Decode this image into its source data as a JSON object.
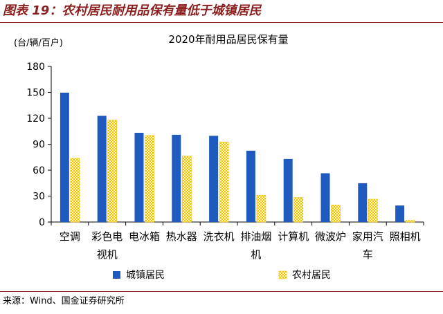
{
  "figure_title": "图表 19：农村居民耐用品保有量低于城镇居民",
  "source_label": "来源：",
  "source_text": "Wind、国金证券研究所",
  "colors": {
    "urban": "#1f5bbf",
    "rural": "#f2c200",
    "title": "#8b1e1e",
    "axis": "#000000"
  },
  "chart_data": {
    "type": "bar",
    "title": "2020年耐用品居民保有量",
    "unit_label": "(台/辆/百户)",
    "xlabel": "",
    "ylabel": "",
    "ylim": [
      0,
      180
    ],
    "yticks": [
      0,
      30,
      60,
      90,
      120,
      150,
      180
    ],
    "grid": false,
    "legend_position": "bottom",
    "categories": [
      "空调",
      "彩色电视机",
      "电冰箱",
      "热水器",
      "洗衣机",
      "排油烟机",
      "计算机",
      "微波炉",
      "家用汽车",
      "照相机"
    ],
    "category_lines": [
      [
        "空调"
      ],
      [
        "彩色电",
        "视机"
      ],
      [
        "电冰箱"
      ],
      [
        "热水器"
      ],
      [
        "洗衣机"
      ],
      [
        "排油烟",
        "机"
      ],
      [
        "计算机"
      ],
      [
        "微波炉"
      ],
      [
        "家用汽",
        "车"
      ],
      [
        "照相机"
      ]
    ],
    "series": [
      {
        "name": "城镇居民",
        "values": [
          149.6,
          122.8,
          103.2,
          100.9,
          99.7,
          82.5,
          72.9,
          56.4,
          44.9,
          19.1
        ]
      },
      {
        "name": "农村居民",
        "values": [
          73.8,
          117.8,
          100.1,
          76.2,
          92.6,
          30.9,
          28.3,
          19.7,
          26.4,
          1.8
        ]
      }
    ]
  }
}
